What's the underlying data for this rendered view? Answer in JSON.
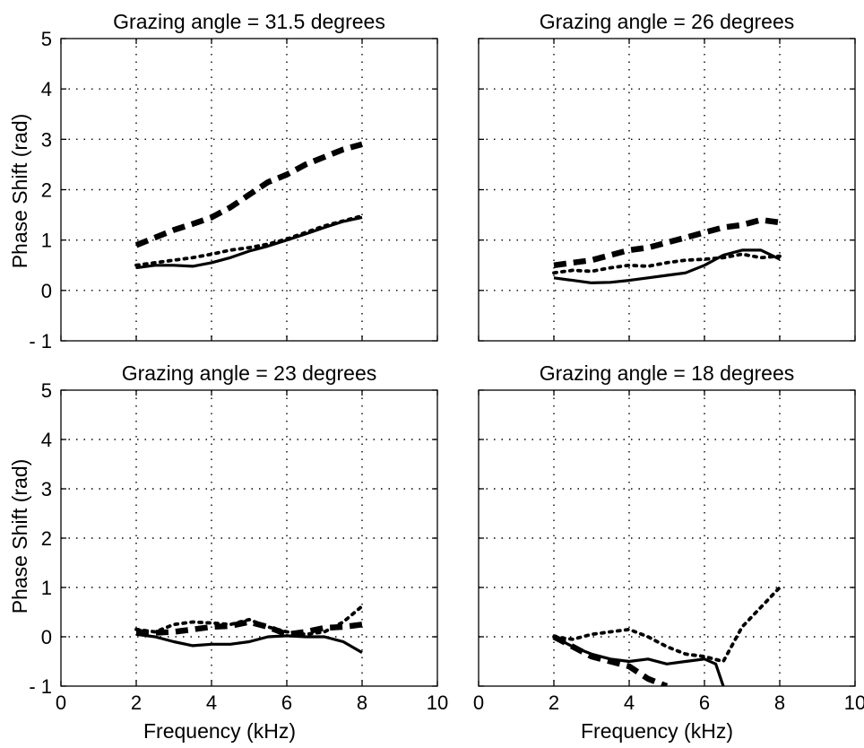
{
  "figure": {
    "xlabel": "Frequency (kHz)",
    "ylabel": "Phase Shift (rad)"
  },
  "chart_data": [
    {
      "type": "line",
      "title": "Grazing angle = 31.5 degrees",
      "xlabel": "",
      "ylabel": "Phase Shift (rad)",
      "xlim": [
        0,
        10
      ],
      "ylim": [
        -1,
        5
      ],
      "xticks": [
        "0",
        "2",
        "4",
        "6",
        "8",
        "10"
      ],
      "yticks": [
        "- 1",
        "0",
        "1",
        "2",
        "3",
        "4",
        "5"
      ],
      "show_xticklabels": false,
      "show_yticklabels": true,
      "grid": true,
      "series": [
        {
          "style": "solid",
          "x": [
            2,
            2.5,
            3,
            3.5,
            4,
            4.5,
            5,
            5.5,
            6,
            6.5,
            7,
            7.5,
            8
          ],
          "y": [
            0.45,
            0.5,
            0.5,
            0.48,
            0.55,
            0.65,
            0.78,
            0.88,
            1.0,
            1.12,
            1.25,
            1.37,
            1.45
          ]
        },
        {
          "style": "dotted",
          "x": [
            2,
            2.5,
            3,
            3.5,
            4,
            4.5,
            5,
            5.5,
            6,
            6.5,
            7,
            7.5,
            8
          ],
          "y": [
            0.5,
            0.55,
            0.6,
            0.65,
            0.72,
            0.8,
            0.85,
            0.92,
            1.02,
            1.15,
            1.28,
            1.38,
            1.48
          ]
        },
        {
          "style": "dashed",
          "x": [
            2,
            2.5,
            3,
            3.5,
            4,
            4.5,
            5,
            5.5,
            6,
            6.5,
            7,
            7.5,
            8
          ],
          "y": [
            0.9,
            1.05,
            1.2,
            1.32,
            1.45,
            1.65,
            1.9,
            2.15,
            2.3,
            2.5,
            2.65,
            2.8,
            2.9
          ]
        }
      ]
    },
    {
      "type": "line",
      "title": "Grazing angle = 26 degrees",
      "xlabel": "",
      "ylabel": "",
      "xlim": [
        0,
        10
      ],
      "ylim": [
        -1,
        5
      ],
      "xticks": [
        "0",
        "2",
        "4",
        "6",
        "8",
        "10"
      ],
      "yticks": [
        "- 1",
        "0",
        "1",
        "2",
        "3",
        "4",
        "5"
      ],
      "show_xticklabels": false,
      "show_yticklabels": false,
      "grid": true,
      "series": [
        {
          "style": "solid",
          "x": [
            2,
            2.5,
            3,
            3.5,
            4,
            4.5,
            5,
            5.5,
            6,
            6.5,
            7,
            7.5,
            8
          ],
          "y": [
            0.25,
            0.2,
            0.15,
            0.16,
            0.2,
            0.25,
            0.3,
            0.35,
            0.5,
            0.7,
            0.8,
            0.8,
            0.62
          ]
        },
        {
          "style": "dotted",
          "x": [
            2,
            2.5,
            3,
            3.5,
            4,
            4.5,
            5,
            5.5,
            6,
            6.5,
            7,
            7.5,
            8
          ],
          "y": [
            0.35,
            0.4,
            0.38,
            0.45,
            0.5,
            0.48,
            0.55,
            0.6,
            0.62,
            0.65,
            0.72,
            0.65,
            0.68
          ]
        },
        {
          "style": "dashed",
          "x": [
            2,
            2.5,
            3,
            3.5,
            4,
            4.5,
            5,
            5.5,
            6,
            6.5,
            7,
            7.5,
            8
          ],
          "y": [
            0.5,
            0.55,
            0.6,
            0.7,
            0.8,
            0.85,
            0.95,
            1.05,
            1.15,
            1.25,
            1.3,
            1.4,
            1.35
          ]
        }
      ]
    },
    {
      "type": "line",
      "title": "Grazing angle = 23 degrees",
      "xlabel": "Frequency (kHz)",
      "ylabel": "Phase Shift (rad)",
      "xlim": [
        0,
        10
      ],
      "ylim": [
        -1,
        5
      ],
      "xticks": [
        "0",
        "2",
        "4",
        "6",
        "8",
        "10"
      ],
      "yticks": [
        "- 1",
        "0",
        "1",
        "2",
        "3",
        "4",
        "5"
      ],
      "show_xticklabels": true,
      "show_yticklabels": true,
      "grid": true,
      "series": [
        {
          "style": "solid",
          "x": [
            2,
            2.5,
            3,
            3.5,
            4,
            4.5,
            5,
            5.5,
            6,
            6.5,
            7,
            7.5,
            8
          ],
          "y": [
            0.05,
            0.0,
            -0.1,
            -0.18,
            -0.15,
            -0.15,
            -0.1,
            0.0,
            0.02,
            0.0,
            0.0,
            -0.1,
            -0.32
          ]
        },
        {
          "style": "dotted",
          "x": [
            2,
            2.5,
            3,
            3.5,
            4,
            4.5,
            5,
            5.5,
            6,
            6.5,
            7,
            7.5,
            8
          ],
          "y": [
            0.15,
            0.1,
            0.25,
            0.3,
            0.28,
            0.25,
            0.35,
            0.2,
            0.1,
            0.05,
            0.1,
            0.3,
            0.62
          ]
        },
        {
          "style": "dashed",
          "x": [
            2,
            2.5,
            3,
            3.5,
            4,
            4.5,
            5,
            5.5,
            6,
            6.5,
            7,
            7.5,
            8
          ],
          "y": [
            0.1,
            0.08,
            0.1,
            0.15,
            0.2,
            0.22,
            0.3,
            0.2,
            0.05,
            0.1,
            0.18,
            0.2,
            0.25
          ]
        }
      ]
    },
    {
      "type": "line",
      "title": "Grazing angle = 18 degrees",
      "xlabel": "Frequency (kHz)",
      "ylabel": "",
      "xlim": [
        0,
        10
      ],
      "ylim": [
        -1,
        5
      ],
      "xticks": [
        "0",
        "2",
        "4",
        "6",
        "8",
        "10"
      ],
      "yticks": [
        "- 1",
        "0",
        "1",
        "2",
        "3",
        "4",
        "5"
      ],
      "show_xticklabels": true,
      "show_yticklabels": false,
      "grid": true,
      "series": [
        {
          "style": "solid",
          "x": [
            2,
            2.5,
            3,
            3.5,
            4,
            4.5,
            5,
            5.5,
            6,
            6.3,
            6.5
          ],
          "y": [
            0.0,
            -0.2,
            -0.35,
            -0.45,
            -0.5,
            -0.45,
            -0.55,
            -0.5,
            -0.45,
            -0.55,
            -1.0
          ]
        },
        {
          "style": "dotted",
          "x": [
            2,
            2.5,
            3,
            3.5,
            4,
            4.5,
            5,
            5.5,
            6,
            6.5,
            7,
            7.5,
            8
          ],
          "y": [
            0.0,
            -0.05,
            0.05,
            0.1,
            0.15,
            0.0,
            -0.2,
            -0.35,
            -0.4,
            -0.5,
            0.2,
            0.6,
            1.0
          ]
        },
        {
          "style": "dashed",
          "x": [
            2,
            2.5,
            3,
            3.5,
            4,
            4.5,
            5
          ],
          "y": [
            0.0,
            -0.2,
            -0.4,
            -0.5,
            -0.6,
            -0.85,
            -1.0
          ]
        }
      ]
    }
  ]
}
